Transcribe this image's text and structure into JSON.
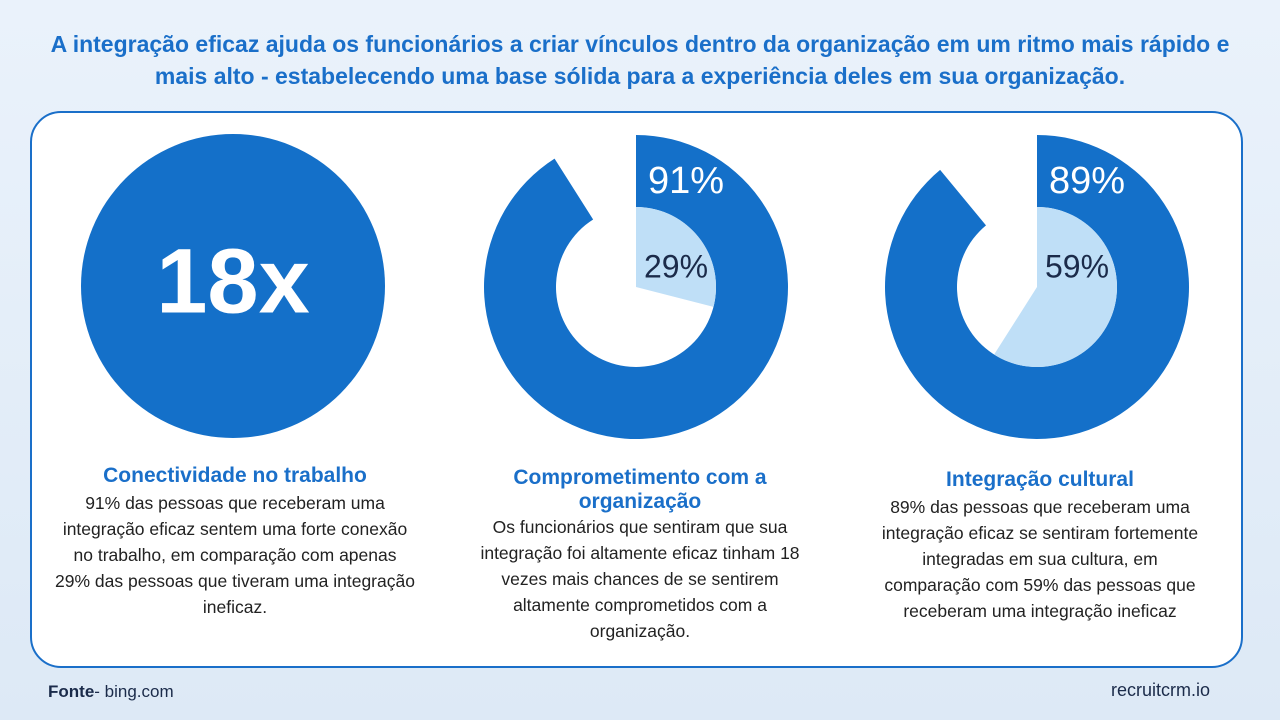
{
  "title": "A integração eficaz ajuda os funcionários a criar vínculos dentro da organização em um ritmo mais rápido e mais alto - estabelecendo uma base sólida para a experiência deles em sua organização.",
  "panels": [
    {
      "big_text": "18x",
      "heading": "Conectividade no trabalho",
      "body": "91% das pessoas que receberam uma integração eficaz sentem uma forte conexão no trabalho, em comparação com apenas 29% das pessoas que tiveram uma integração ineficaz."
    },
    {
      "outer": {
        "value": 91,
        "label": "91%"
      },
      "inner": {
        "value": 29,
        "label": "29%"
      },
      "heading": "Comprometimento com a organização",
      "body": "Os funcionários que sentiram que sua integração foi altamente eficaz tinham 18 vezes mais chances de se sentirem altamente comprometidos com a organização."
    },
    {
      "outer": {
        "value": 89,
        "label": "89%"
      },
      "inner": {
        "value": 59,
        "label": "59%"
      },
      "heading": "Integração cultural",
      "body": "89% das pessoas que receberam uma integração eficaz se sentiram fortemente integradas em sua cultura, em comparação com 59% das pessoas que receberam uma integração ineficaz"
    }
  ],
  "footer": {
    "source_label": "Fonte",
    "source": "- bing.com",
    "brand": "recruitcrm.io"
  }
}
